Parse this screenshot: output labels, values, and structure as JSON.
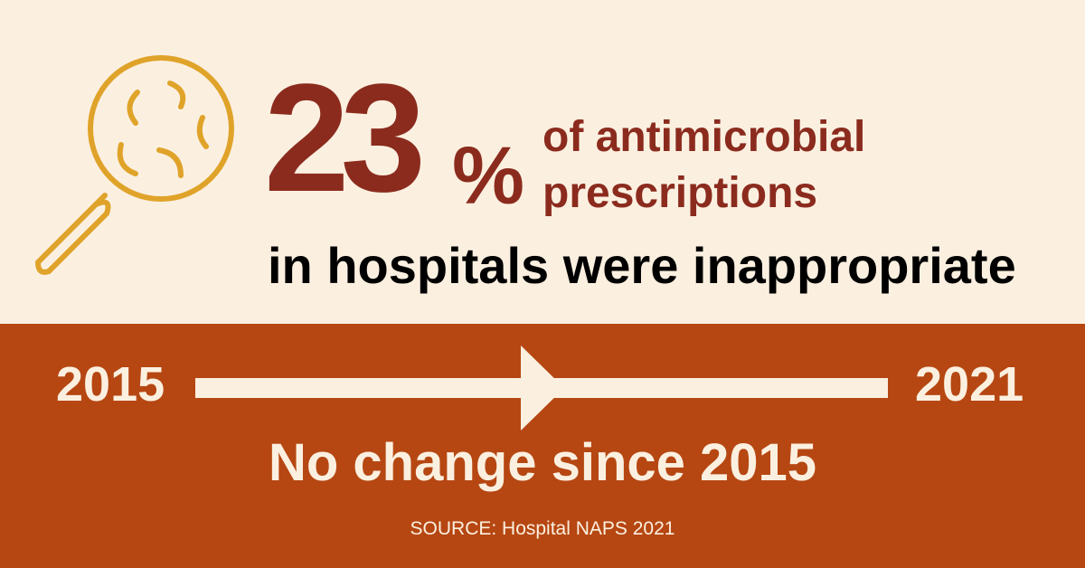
{
  "headline": {
    "value": "23",
    "unit": "%",
    "line1": "of antimicrobial",
    "line2": "prescriptions",
    "line3": "in hospitals were inappropriate"
  },
  "timeline": {
    "start_year": "2015",
    "end_year": "2021",
    "message": "No change since 2015"
  },
  "source": "SOURCE: Hospital NAPS 2021",
  "icons": {
    "magnifier": "magnifying-glass-bacteria-icon",
    "arrow": "right-arrow-icon"
  },
  "colors": {
    "background_top": "#FBF0E0",
    "background_bottom": "#B64712",
    "accent_dark": "#8B2B1E",
    "icon_gold": "#E0A32A",
    "text_black": "#000000"
  }
}
